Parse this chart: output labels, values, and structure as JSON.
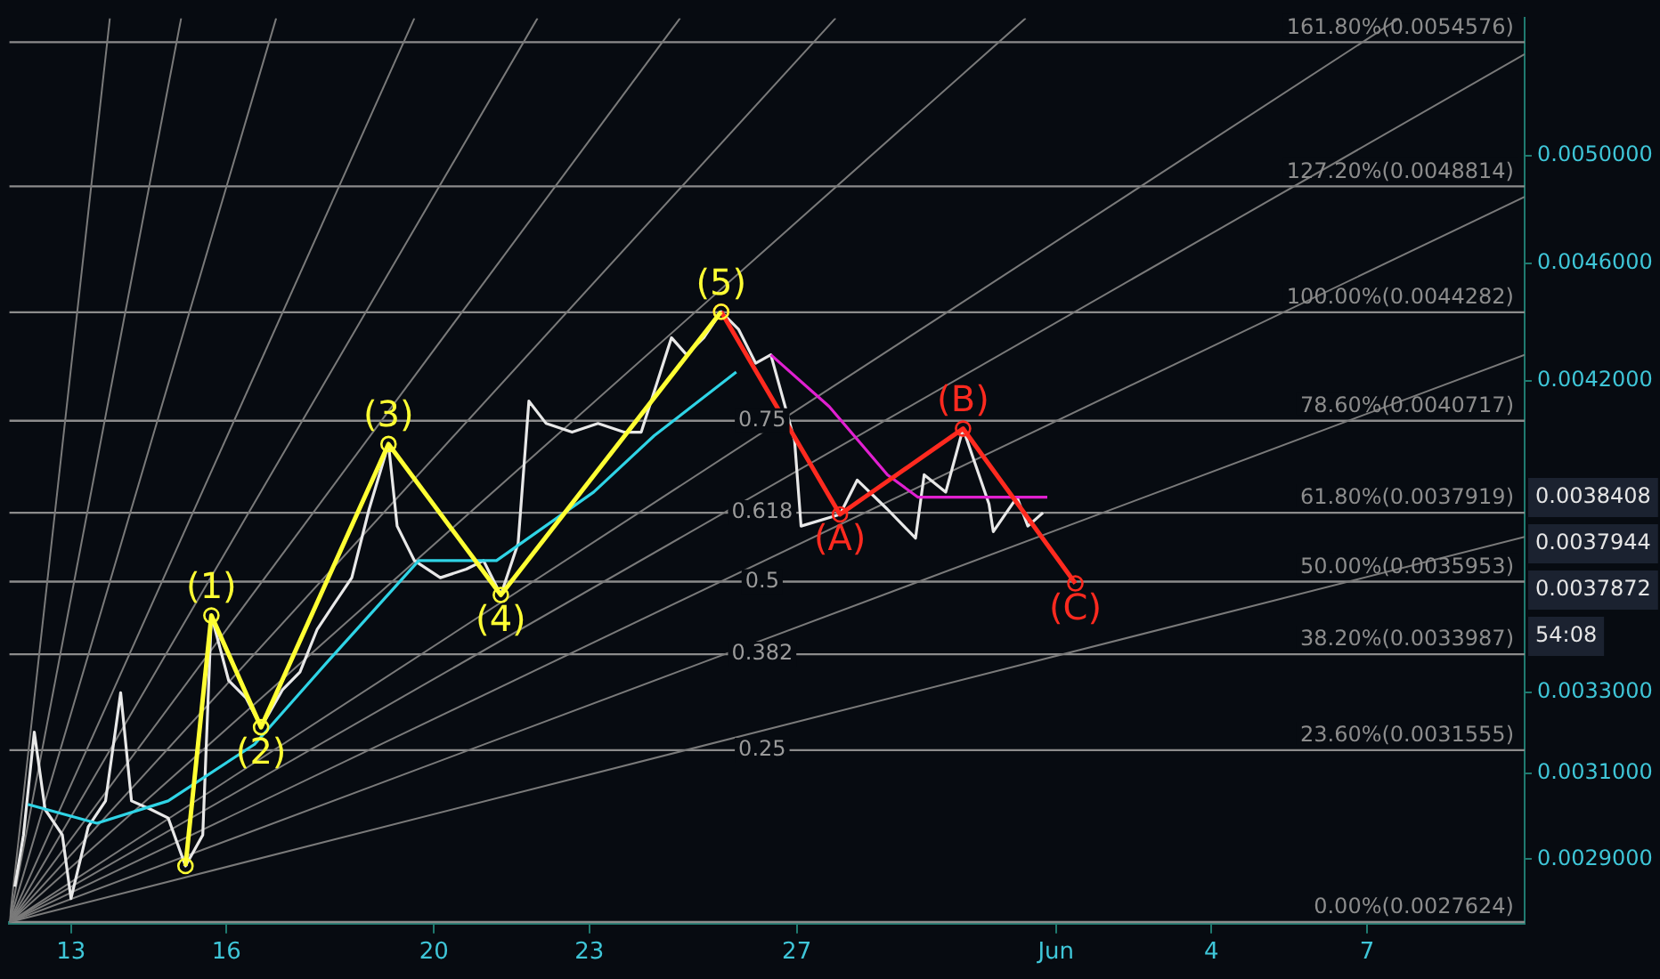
{
  "chart_data": {
    "type": "line",
    "log": "y",
    "grid": false,
    "legend": false,
    "marker": "none",
    "xlim": [
      "--05-11T19:30",
      "--06-10T01:00"
    ],
    "xticks": [
      {
        "value": "--05-13",
        "label": "13"
      },
      {
        "value": "--05-16",
        "label": "16"
      },
      {
        "value": "--05-20",
        "label": "20"
      },
      {
        "value": "--05-23",
        "label": "23"
      },
      {
        "value": "--05-27",
        "label": "27"
      },
      {
        "value": "--06-01",
        "label": "Jun"
      },
      {
        "value": "--06-04",
        "label": "4"
      },
      {
        "value": "--06-07",
        "label": "7"
      }
    ],
    "ylim": [
      0.002761,
      0.00556
    ],
    "yticks": [
      {
        "value": 0.0029,
        "label": "0.0029000"
      },
      {
        "value": 0.0031,
        "label": "0.0031000"
      },
      {
        "value": 0.0033,
        "label": "0.0033000"
      },
      {
        "value": 0.0042,
        "label": "0.0042000"
      },
      {
        "value": 0.0046,
        "label": "0.0046000"
      },
      {
        "value": 0.005,
        "label": "0.0050000"
      }
    ],
    "series": [
      {
        "color": "#7a7a7a",
        "x": [
          "--05-11T19:30",
          "--05-13T18:00"
        ],
        "values": [
          0.0027624,
          0.00556
        ]
      },
      {
        "color": "#7a7a7a",
        "x": [
          "--05-11T19:30",
          "--05-15T03:00"
        ],
        "values": [
          0.0027624,
          0.00556
        ]
      },
      {
        "color": "#7a7a7a",
        "x": [
          "--05-11T19:30",
          "--05-16T23:00"
        ],
        "values": [
          0.0027624,
          0.00556
        ]
      },
      {
        "color": "#7a7a7a",
        "x": [
          "--05-11T19:30",
          "--05-19T15:00"
        ],
        "values": [
          0.0027624,
          0.00556
        ]
      },
      {
        "color": "#7a7a7a",
        "x": [
          "--05-11T19:30",
          "--05-22T00:00"
        ],
        "values": [
          0.0027624,
          0.00556
        ]
      },
      {
        "color": "#7a7a7a",
        "x": [
          "--05-11T19:30",
          "--05-24T18:00"
        ],
        "values": [
          0.0027624,
          0.00556
        ]
      },
      {
        "color": "#7a7a7a",
        "x": [
          "--05-11T19:30",
          "--05-27T18:00"
        ],
        "values": [
          0.0027624,
          0.00556
        ]
      },
      {
        "color": "#7a7a7a",
        "x": [
          "--05-11T19:30",
          "--05-31T10:00"
        ],
        "values": [
          0.0027624,
          0.00556
        ]
      },
      {
        "color": "#7a7a7a",
        "x": [
          "--05-11T19:30",
          "--06-07T15:00"
        ],
        "values": [
          0.0027624,
          0.00556
        ]
      },
      {
        "color": "#7a7a7a",
        "x": [
          "--05-11T19:30",
          "--06-10T01:00"
        ],
        "values": [
          0.0027624,
          0.005407
        ]
      },
      {
        "color": "#7a7a7a",
        "x": [
          "--05-11T19:30",
          "--06-10T01:00"
        ],
        "values": [
          0.0027624,
          0.004842
        ]
      },
      {
        "color": "#7a7a7a",
        "x": [
          "--05-11T19:30",
          "--06-10T01:00"
        ],
        "values": [
          0.0027624,
          0.004285
        ]
      },
      {
        "color": "#7a7a7a",
        "x": [
          "--05-11T19:30",
          "--06-10T01:00"
        ],
        "values": [
          0.0027624,
          0.003722
        ]
      },
      {
        "color": "#e8e8e8",
        "x": [
          "--05-11T22:00",
          "--05-12T02:00",
          "--05-12T07:00",
          "--05-12T12:00",
          "--05-12T20:00",
          "--05-13T00:00",
          "--05-13T08:00",
          "--05-13T16:00",
          "--05-13T23:00",
          "--05-14T04:00",
          "--05-14T13:00",
          "--05-14T21:00",
          "--05-15T05:00",
          "--05-15T13:00",
          "--05-15T17:00",
          "--05-16T01:00",
          "--05-16T09:00",
          "--05-16T16:00",
          "--05-17T02:00",
          "--05-17T10:00",
          "--05-17T18:00",
          "--05-18T02:00",
          "--05-18T10:00",
          "--05-18T18:00",
          "--05-19T03:00",
          "--05-19T07:00",
          "--05-19T15:00",
          "--05-20T03:00",
          "--05-20T15:00",
          "--05-20T23:00",
          "--05-21T07:00",
          "--05-21T15:00",
          "--05-21T20:00",
          "--05-22T04:00",
          "--05-22T16:00",
          "--05-23T04:00",
          "--05-23T16:00",
          "--05-24T00:00",
          "--05-24T14:00",
          "--05-24T21:00",
          "--05-25T05:00",
          "--05-25T13:00",
          "--05-25T21:00",
          "--05-26T05:00",
          "--05-26T12:00",
          "--05-26T23:00",
          "--05-27T02:00",
          "--05-27T20:00",
          "--05-28T04:00",
          "--05-28T18:00",
          "--05-29T07:00",
          "--05-29T11:00",
          "--05-29T21:00",
          "--05-30T05:00",
          "--05-30T17:00",
          "--05-30T19:00",
          "--05-31T06:00",
          "--05-31T11:00",
          "--05-31T18:00"
        ],
        "values": [
          0.002839,
          0.002955,
          0.0032,
          0.003014,
          0.002955,
          0.002813,
          0.002974,
          0.003034,
          0.003299,
          0.003034,
          0.003014,
          0.002994,
          0.002885,
          0.002955,
          0.003502,
          0.00333,
          0.003286,
          0.003212,
          0.003307,
          0.003352,
          0.003465,
          0.003535,
          0.003606,
          0.003802,
          0.003999,
          0.003753,
          0.003654,
          0.003606,
          0.00363,
          0.003654,
          0.003558,
          0.003703,
          0.004134,
          0.004063,
          0.004036,
          0.004063,
          0.004036,
          0.004036,
          0.004342,
          0.004285,
          0.004342,
          0.00443,
          0.004371,
          0.004257,
          0.004285,
          0.00401,
          0.003753,
          0.003787,
          0.003889,
          0.003802,
          0.003718,
          0.003905,
          0.003853,
          0.004047,
          0.003818,
          0.003737,
          0.003838,
          0.003753,
          0.003792
        ]
      },
      {
        "color": "#2fd4e6",
        "x": [
          "--05-12T04:00",
          "--05-13T12:00",
          "--05-14T21:00",
          "--05-16T13:00",
          "--05-17T22:00",
          "--05-19T17:00",
          "--05-21T05:00",
          "--05-23T02:00",
          "--05-24T06:00",
          "--05-25T20:00"
        ],
        "values": [
          0.003026,
          0.002982,
          0.003034,
          0.00317,
          0.003374,
          0.003654,
          0.003654,
          0.003853,
          0.004025,
          0.004228
        ]
      },
      {
        "color": "#e020d0",
        "x": [
          "--05-26T12:00",
          "--05-27T15:00",
          "--05-28T18:00",
          "--05-29T08:00",
          "--05-31T20:00"
        ],
        "values": [
          0.004285,
          0.004117,
          0.003905,
          0.003838,
          0.003838
        ]
      },
      {
        "color": "#ff2a1f",
        "marker": "circle",
        "x": [
          "--05-25T13:00",
          "--05-27T20:00",
          "--05-30T05:00",
          "--06-01T09:00"
        ],
        "values": [
          0.00443,
          0.003787,
          0.004047,
          0.00359
        ]
      },
      {
        "color": "#ffff33",
        "marker": "circle",
        "x": [
          "--05-15T05:00",
          "--05-15T17:00",
          "--05-16T16:00",
          "--05-19T03:00",
          "--05-21T07:00",
          "--05-25T13:00"
        ],
        "values": [
          0.002885,
          0.003502,
          0.003212,
          0.003999,
          0.003558,
          0.00443
        ]
      }
    ],
    "ref_lines": [
      {
        "axis": "y",
        "value": 0.0027624,
        "label": "0.00%(0.0027624)",
        "color": "#8c8c8c"
      },
      {
        "axis": "y",
        "value": 0.0031555,
        "label": "23.60%(0.0031555)",
        "color": "#8c8c8c"
      },
      {
        "axis": "y",
        "value": 0.0033987,
        "label": "38.20%(0.0033987)",
        "color": "#8c8c8c"
      },
      {
        "axis": "y",
        "value": 0.0035953,
        "label": "50.00%(0.0035953)",
        "color": "#8c8c8c"
      },
      {
        "axis": "y",
        "value": 0.0037919,
        "label": "61.80%(0.0037919)",
        "color": "#8c8c8c"
      },
      {
        "axis": "y",
        "value": 0.0040717,
        "label": "78.60%(0.0040717)",
        "color": "#8c8c8c"
      },
      {
        "axis": "y",
        "value": 0.0044282,
        "label": "100.00%(0.0044282)",
        "color": "#8c8c8c"
      },
      {
        "axis": "y",
        "value": 0.0048814,
        "label": "127.20%(0.0048814)",
        "color": "#8c8c8c"
      },
      {
        "axis": "y",
        "value": 0.0054576,
        "label": "161.80%(0.0054576)",
        "color": "#8c8c8c"
      }
    ],
    "annotations": [
      {
        "text": "(1)",
        "x": "--05-15T17:00",
        "y": 0.003502
      },
      {
        "text": "(2)",
        "x": "--05-16T16:00",
        "y": 0.003212
      },
      {
        "text": "(3)",
        "x": "--05-19T03:00",
        "y": 0.003999
      },
      {
        "text": "(4)",
        "x": "--05-21T07:00",
        "y": 0.003558
      },
      {
        "text": "(5)",
        "x": "--05-25T13:00",
        "y": 0.00443
      },
      {
        "text": "(A)",
        "x": "--05-27T20:00",
        "y": 0.003787
      },
      {
        "text": "(B)",
        "x": "--05-30T05:00",
        "y": 0.004047
      },
      {
        "text": "(C)",
        "x": "--06-01T09:00",
        "y": 0.00359
      },
      {
        "text": "0.75",
        "x": "--05-26T08:00",
        "y": 0.0040717
      },
      {
        "text": "0.618",
        "x": "--05-26T08:00",
        "y": 0.0037919
      },
      {
        "text": "0.5",
        "x": "--05-26T08:00",
        "y": 0.0035953
      },
      {
        "text": "0.382",
        "x": "--05-26T08:00",
        "y": 0.0033987
      },
      {
        "text": "0.25",
        "x": "--05-26T08:00",
        "y": 0.0031555
      },
      "0.0038408",
      "0.0037944",
      "0.0037872",
      "54:08"
    ]
  }
}
